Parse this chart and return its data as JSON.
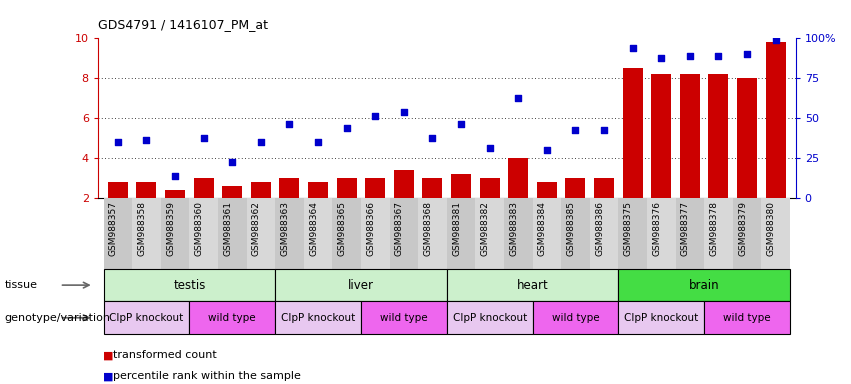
{
  "title": "GDS4791 / 1416107_PM_at",
  "samples": [
    "GSM988357",
    "GSM988358",
    "GSM988359",
    "GSM988360",
    "GSM988361",
    "GSM988362",
    "GSM988363",
    "GSM988364",
    "GSM988365",
    "GSM988366",
    "GSM988367",
    "GSM988368",
    "GSM988381",
    "GSM988382",
    "GSM988383",
    "GSM988384",
    "GSM988385",
    "GSM988386",
    "GSM988375",
    "GSM988376",
    "GSM988377",
    "GSM988378",
    "GSM988379",
    "GSM988380"
  ],
  "bar_values": [
    2.8,
    2.8,
    2.4,
    3.0,
    2.6,
    2.8,
    3.0,
    2.8,
    3.0,
    3.0,
    3.4,
    3.0,
    3.2,
    3.0,
    4.0,
    2.8,
    3.0,
    3.0,
    8.5,
    8.2,
    8.2,
    8.2,
    8.0,
    9.8
  ],
  "scatter_values": [
    4.8,
    4.9,
    3.1,
    5.0,
    3.8,
    4.8,
    5.7,
    4.8,
    5.5,
    6.1,
    6.3,
    5.0,
    5.7,
    4.5,
    7.0,
    4.4,
    5.4,
    5.4,
    9.5,
    9.0,
    9.1,
    9.1,
    9.2,
    9.9
  ],
  "ylim": [
    2,
    10
  ],
  "yticks": [
    2,
    4,
    6,
    8,
    10
  ],
  "right_ytick_vals": [
    0,
    25,
    50,
    75,
    100
  ],
  "right_ytick_labels": [
    "0",
    "25",
    "50",
    "75",
    "100%"
  ],
  "bar_color": "#cc0000",
  "scatter_color": "#0000cc",
  "tick_label_bg": "#d0d0d0",
  "tissues": [
    {
      "label": "testis",
      "start": 0,
      "end": 5,
      "color": "#ccf0cc"
    },
    {
      "label": "liver",
      "start": 6,
      "end": 11,
      "color": "#ccf0cc"
    },
    {
      "label": "heart",
      "start": 12,
      "end": 17,
      "color": "#ccf0cc"
    },
    {
      "label": "brain",
      "start": 18,
      "end": 23,
      "color": "#44dd44"
    }
  ],
  "genotypes": [
    {
      "label": "ClpP knockout",
      "start": 0,
      "end": 2,
      "color": "#e8c8f0"
    },
    {
      "label": "wild type",
      "start": 3,
      "end": 5,
      "color": "#ee66ee"
    },
    {
      "label": "ClpP knockout",
      "start": 6,
      "end": 8,
      "color": "#e8c8f0"
    },
    {
      "label": "wild type",
      "start": 9,
      "end": 11,
      "color": "#ee66ee"
    },
    {
      "label": "ClpP knockout",
      "start": 12,
      "end": 14,
      "color": "#e8c8f0"
    },
    {
      "label": "wild type",
      "start": 15,
      "end": 17,
      "color": "#ee66ee"
    },
    {
      "label": "ClpP knockout",
      "start": 18,
      "end": 20,
      "color": "#e8c8f0"
    },
    {
      "label": "wild type",
      "start": 21,
      "end": 23,
      "color": "#ee66ee"
    }
  ],
  "legend": [
    {
      "label": "transformed count",
      "color": "#cc0000"
    },
    {
      "label": "percentile rank within the sample",
      "color": "#0000cc"
    }
  ],
  "tissue_label": "tissue",
  "geno_label": "genotype/variation"
}
